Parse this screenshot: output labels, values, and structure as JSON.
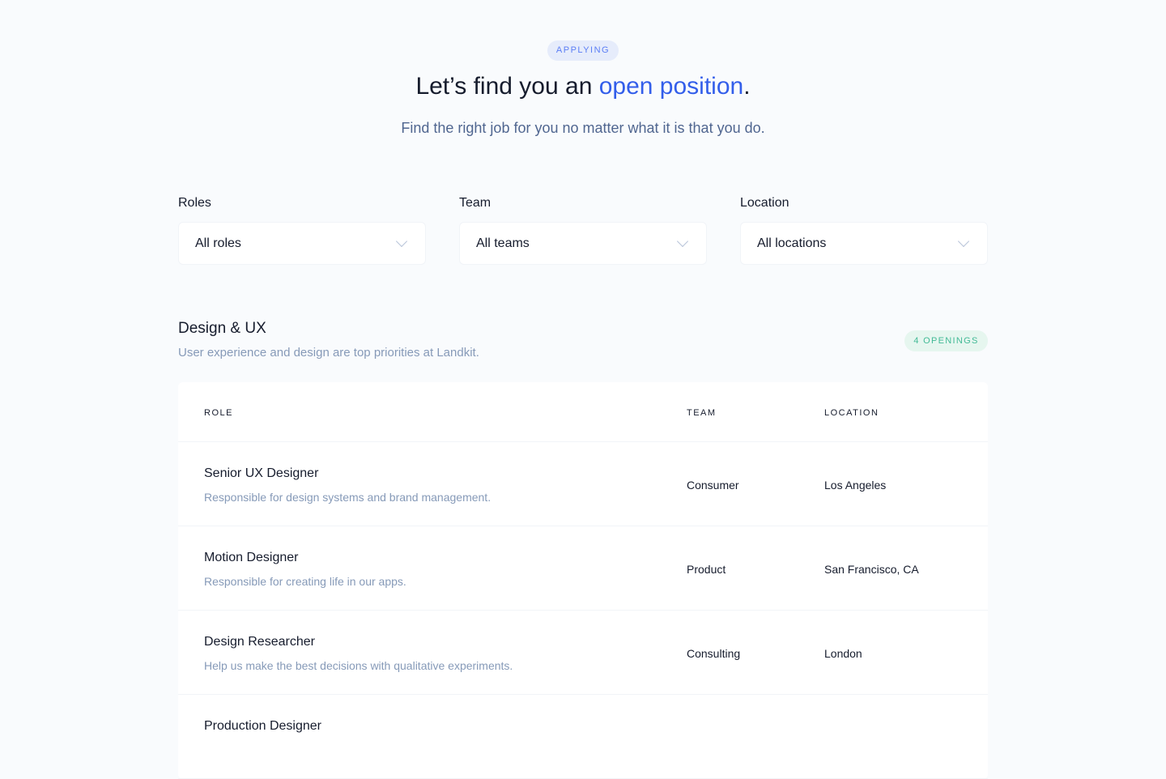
{
  "hero": {
    "badge": "APPLYING",
    "title_prefix": "Let’s find you an ",
    "title_accent": "open position",
    "title_suffix": ".",
    "subtitle": "Find the right job for you no matter what it is that you do."
  },
  "filters": [
    {
      "label": "Roles",
      "value": "All roles"
    },
    {
      "label": "Team",
      "value": "All teams"
    },
    {
      "label": "Location",
      "value": "All locations"
    }
  ],
  "section": {
    "title": "Design & UX",
    "subtitle": "User experience and design are top priorities at Landkit.",
    "openings": "4 OPENINGS"
  },
  "table": {
    "headers": [
      "ROLE",
      "TEAM",
      "LOCATION"
    ],
    "rows": [
      {
        "title": "Senior UX Designer",
        "desc": "Responsible for design systems and brand management.",
        "team": "Consumer",
        "location": "Los Angeles"
      },
      {
        "title": "Motion Designer",
        "desc": "Responsible for creating life in our apps.",
        "team": "Product",
        "location": "San Francisco, CA"
      },
      {
        "title": "Design Researcher",
        "desc": "Help us make the best decisions with qualitative experiments.",
        "team": "Consulting",
        "location": "London"
      },
      {
        "title": "Production Designer",
        "desc": "",
        "team": "",
        "location": ""
      }
    ]
  },
  "colors": {
    "accent": "#335eea",
    "success": "#42ba96",
    "muted": "#869ab8"
  }
}
